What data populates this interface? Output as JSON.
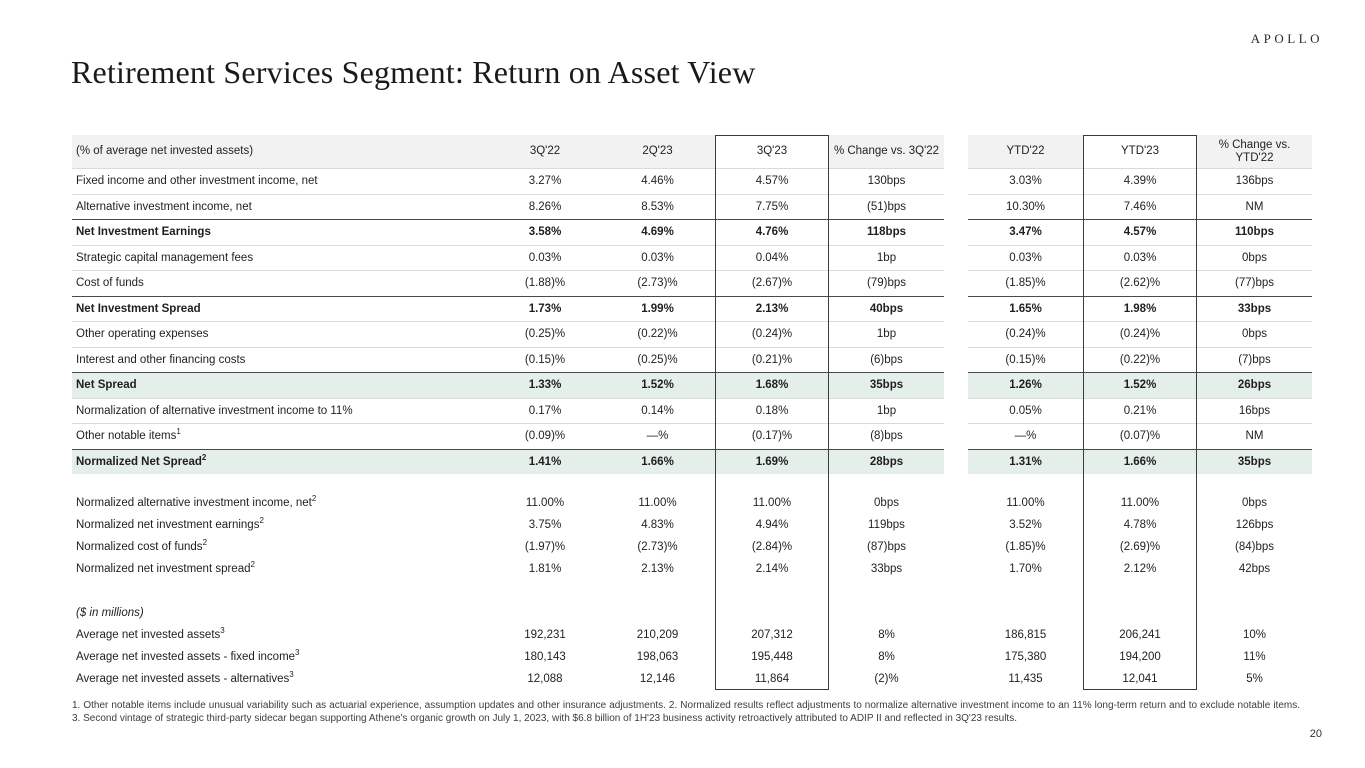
{
  "slide": {
    "logo": "APOLLO",
    "title": "Retirement Services Segment: Return on Asset View",
    "page_number": "20",
    "footnote": "1. Other notable items include unusual variability such as actuarial experience, assumption updates and other insurance adjustments. 2. Normalized results reflect adjustments to normalize alternative investment income to an 11% long-term return and to exclude notable items. 3. Second vintage of strategic third-party sidecar began supporting Athene's organic growth on July 1, 2023, with $6.8 billion of 1H'23 business activity retroactively attributed to ADIP II and reflected in 3Q'23 results."
  },
  "colors": {
    "header_bg": "#f2f2f2",
    "highlight_bg": "#e4efe9",
    "dark_line": "#4a4a4a",
    "light_line": "#dadada",
    "box_border": "#3c3c3c"
  },
  "table": {
    "unit_label": "(% of average net invested assets)",
    "column_headers": [
      "3Q'22",
      "2Q'23",
      "3Q'23",
      "% Change vs. 3Q'22",
      "YTD'22",
      "YTD'23",
      "% Change vs. YTD'22"
    ],
    "boxed_columns": [
      "3Q'23",
      "YTD'23"
    ],
    "rows": [
      {
        "type": "data",
        "section": 1,
        "label": "Fixed income and other investment income, net",
        "sup": "",
        "values": [
          "3.27%",
          "4.46%",
          "4.57%",
          "130bps",
          "3.03%",
          "4.39%",
          "136bps"
        ],
        "bold": false,
        "highlight": false,
        "line_above": null,
        "line_below": "light",
        "indent": false,
        "italic": false
      },
      {
        "type": "data",
        "section": 1,
        "label": "Alternative investment income, net",
        "sup": "",
        "values": [
          "8.26%",
          "8.53%",
          "7.75%",
          "(51)bps",
          "10.30%",
          "7.46%",
          "NM"
        ],
        "bold": false,
        "highlight": false,
        "line_above": null,
        "line_below": null,
        "indent": false,
        "italic": false
      },
      {
        "type": "data",
        "section": 1,
        "label": "Net Investment Earnings",
        "sup": "",
        "values": [
          "3.58%",
          "4.69%",
          "4.76%",
          "118bps",
          "3.47%",
          "4.57%",
          "110bps"
        ],
        "bold": true,
        "highlight": false,
        "line_above": "dark",
        "line_below": "light",
        "indent": false,
        "italic": false
      },
      {
        "type": "data",
        "section": 1,
        "label": "Strategic capital management fees",
        "sup": "",
        "values": [
          "0.03%",
          "0.03%",
          "0.04%",
          "1bp",
          "0.03%",
          "0.03%",
          "0bps"
        ],
        "bold": false,
        "highlight": false,
        "line_above": null,
        "line_below": "light",
        "indent": false,
        "italic": false
      },
      {
        "type": "data",
        "section": 1,
        "label": "Cost of funds",
        "sup": "",
        "values": [
          "(1.88)%",
          "(2.73)%",
          "(2.67)%",
          "(79)bps",
          "(1.85)%",
          "(2.62)%",
          "(77)bps"
        ],
        "bold": false,
        "highlight": false,
        "line_above": null,
        "line_below": null,
        "indent": false,
        "italic": false
      },
      {
        "type": "data",
        "section": 1,
        "label": "Net Investment Spread",
        "sup": "",
        "values": [
          "1.73%",
          "1.99%",
          "2.13%",
          "40bps",
          "1.65%",
          "1.98%",
          "33bps"
        ],
        "bold": true,
        "highlight": false,
        "line_above": "dark",
        "line_below": "light",
        "indent": false,
        "italic": false
      },
      {
        "type": "data",
        "section": 1,
        "label": "Other operating expenses",
        "sup": "",
        "values": [
          "(0.25)%",
          "(0.22)%",
          "(0.24)%",
          "1bp",
          "(0.24)%",
          "(0.24)%",
          "0bps"
        ],
        "bold": false,
        "highlight": false,
        "line_above": null,
        "line_below": "light",
        "indent": false,
        "italic": false
      },
      {
        "type": "data",
        "section": 1,
        "label": "Interest and other financing costs",
        "sup": "",
        "values": [
          "(0.15)%",
          "(0.25)%",
          "(0.21)%",
          "(6)bps",
          "(0.15)%",
          "(0.22)%",
          "(7)bps"
        ],
        "bold": false,
        "highlight": false,
        "line_above": null,
        "line_below": null,
        "indent": false,
        "italic": false
      },
      {
        "type": "data",
        "section": 1,
        "label": "Net Spread",
        "sup": "",
        "values": [
          "1.33%",
          "1.52%",
          "1.68%",
          "35bps",
          "1.26%",
          "1.52%",
          "26bps"
        ],
        "bold": true,
        "highlight": true,
        "line_above": "dark",
        "line_below": "light",
        "indent": false,
        "italic": false
      },
      {
        "type": "data",
        "section": 1,
        "label": "Normalization of alternative investment income to 11%",
        "sup": "",
        "values": [
          "0.17%",
          "0.14%",
          "0.18%",
          "1bp",
          "0.05%",
          "0.21%",
          "16bps"
        ],
        "bold": false,
        "highlight": false,
        "line_above": null,
        "line_below": "light",
        "indent": false,
        "italic": false
      },
      {
        "type": "data",
        "section": 1,
        "label": "Other notable items",
        "sup": "1",
        "values": [
          "(0.09)%",
          "—%",
          "(0.17)%",
          "(8)bps",
          "—%",
          "(0.07)%",
          "NM"
        ],
        "bold": false,
        "highlight": false,
        "line_above": null,
        "line_below": null,
        "indent": false,
        "italic": false
      },
      {
        "type": "data",
        "section": 1,
        "label": "Normalized Net Spread",
        "sup": "2",
        "values": [
          "1.41%",
          "1.66%",
          "1.69%",
          "28bps",
          "1.31%",
          "1.66%",
          "35bps"
        ],
        "bold": true,
        "highlight": true,
        "line_above": "dark",
        "line_below": null,
        "indent": false,
        "italic": false
      },
      {
        "type": "spacer",
        "height": 18
      },
      {
        "type": "data",
        "section": 2,
        "label": "Normalized alternative investment income, net",
        "sup": "2",
        "values": [
          "11.00%",
          "11.00%",
          "11.00%",
          "0bps",
          "11.00%",
          "11.00%",
          "0bps"
        ],
        "bold": false,
        "highlight": false,
        "line_above": null,
        "line_below": null,
        "indent": false,
        "italic": false
      },
      {
        "type": "data",
        "section": 2,
        "label": "Normalized net investment earnings",
        "sup": "2",
        "values": [
          "3.75%",
          "4.83%",
          "4.94%",
          "119bps",
          "3.52%",
          "4.78%",
          "126bps"
        ],
        "bold": false,
        "highlight": false,
        "line_above": null,
        "line_below": null,
        "indent": false,
        "italic": false
      },
      {
        "type": "data",
        "section": 2,
        "label": "Normalized cost of funds",
        "sup": "2",
        "values": [
          "(1.97)%",
          "(2.73)%",
          "(2.84)%",
          "(87)bps",
          "(1.85)%",
          "(2.69)%",
          "(84)bps"
        ],
        "bold": false,
        "highlight": false,
        "line_above": null,
        "line_below": null,
        "indent": false,
        "italic": false
      },
      {
        "type": "data",
        "section": 2,
        "label": "Normalized net investment spread",
        "sup": "2",
        "values": [
          "1.81%",
          "2.13%",
          "2.14%",
          "33bps",
          "1.70%",
          "2.12%",
          "42bps"
        ],
        "bold": false,
        "highlight": false,
        "line_above": null,
        "line_below": null,
        "indent": false,
        "italic": false
      },
      {
        "type": "spacer",
        "height": 22
      },
      {
        "type": "data",
        "section": 3,
        "label": "($ in millions)",
        "sup": "",
        "values": [
          "",
          "",
          "",
          "",
          "",
          "",
          ""
        ],
        "bold": false,
        "highlight": false,
        "line_above": null,
        "line_below": null,
        "indent": false,
        "italic": true
      },
      {
        "type": "data",
        "section": 3,
        "label": "Average net invested assets",
        "sup": "3",
        "values": [
          "192,231",
          "210,209",
          "207,312",
          "8%",
          "186,815",
          "206,241",
          "10%"
        ],
        "bold": false,
        "highlight": false,
        "line_above": null,
        "line_below": null,
        "indent": false,
        "italic": false
      },
      {
        "type": "data",
        "section": 3,
        "label": "Average net invested assets - fixed income",
        "sup": "3",
        "values": [
          "180,143",
          "198,063",
          "195,448",
          "8%",
          "175,380",
          "194,200",
          "11%"
        ],
        "bold": false,
        "highlight": false,
        "line_above": null,
        "line_below": null,
        "indent": true,
        "italic": false
      },
      {
        "type": "data",
        "section": 3,
        "label": "Average net invested assets - alternatives",
        "sup": "3",
        "values": [
          "12,088",
          "12,146",
          "11,864",
          "(2)%",
          "11,435",
          "12,041",
          "5%"
        ],
        "bold": false,
        "highlight": false,
        "line_above": null,
        "line_below": null,
        "indent": true,
        "italic": false
      }
    ]
  }
}
